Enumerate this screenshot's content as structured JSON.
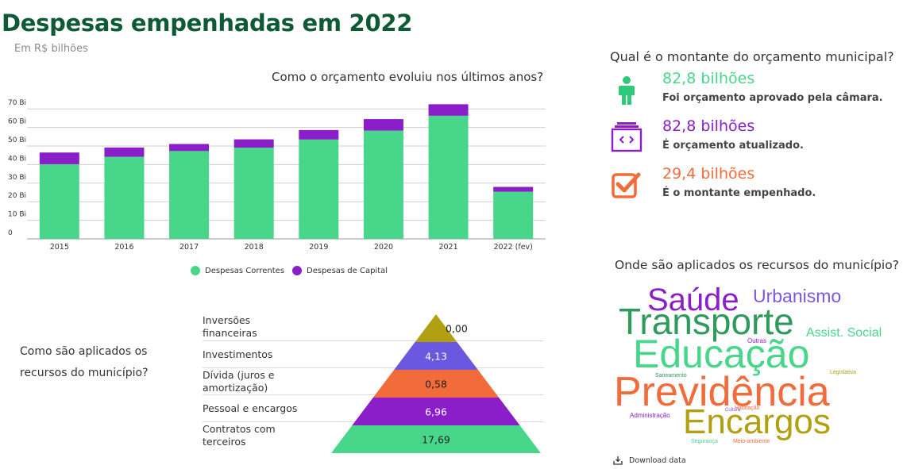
{
  "header": {
    "title": "Despesas empenhadas em 2022",
    "subtitle": "Em R$ bilhões"
  },
  "colors": {
    "title": "#0d5a34",
    "correntes": "#48d68b",
    "capital": "#8a1ec8",
    "pyramid": [
      "#b0a012",
      "#6b57e0",
      "#f26b3a",
      "#8a1ec8",
      "#48d68b"
    ]
  },
  "chart_data": [
    {
      "type": "bar",
      "stacked": true,
      "title": "Como o orçamento evoluiu nos últimos anos?",
      "categories": [
        "2015",
        "2016",
        "2017",
        "2018",
        "2019",
        "2020",
        "2021",
        "2022 (fev)"
      ],
      "series": [
        {
          "name": "Despesas Correntes",
          "values": [
            40.2,
            44.2,
            47.3,
            49.1,
            53.5,
            58.3,
            66.3,
            25.4
          ]
        },
        {
          "name": "Despesas de Capital",
          "values": [
            6.3,
            5.0,
            3.8,
            4.5,
            5.1,
            6.2,
            6.2,
            2.6
          ]
        }
      ],
      "ylim": [
        0,
        75
      ],
      "yticks": [
        0,
        10,
        20,
        30,
        40,
        50,
        60,
        70
      ],
      "yticklabels": [
        "0",
        "10 Bi",
        "20 Bi",
        "30 Bi",
        "40 Bi",
        "50 Bi",
        "60 Bi",
        "70 Bi"
      ],
      "grid": true,
      "legend": "bottom"
    },
    {
      "type": "pyramid",
      "title": "Como são aplicados os recursos do município?",
      "categories": [
        "Inversões financeiras",
        "Investimentos",
        "Dívida (juros e amortização)",
        "Pessoal e encargos",
        "Contratos com terceiros"
      ],
      "values": [
        0.0,
        4.13,
        0.58,
        6.96,
        17.69
      ],
      "value_labels": [
        "0,00",
        "4,13",
        "0,58",
        "6,96",
        "17,69"
      ]
    },
    {
      "type": "wordcloud",
      "title": "Onde são aplicados os recursos do município?",
      "words": [
        {
          "text": "Saúde",
          "color": "#8a1ec8"
        },
        {
          "text": "Urbanismo",
          "color": "#7b57e0"
        },
        {
          "text": "Transporte",
          "color": "#2e9a5c"
        },
        {
          "text": "Assist. Social",
          "color": "#48d68b"
        },
        {
          "text": "Outras",
          "color": "#8a1ec8"
        },
        {
          "text": "Educação",
          "color": "#48d68b"
        },
        {
          "text": "Saneamento",
          "color": "#2e9a5c"
        },
        {
          "text": "Legislativa",
          "color": "#b0a012"
        },
        {
          "text": "Previdência",
          "color": "#f26b3a"
        },
        {
          "text": "Habitação",
          "color": "#f26b3a"
        },
        {
          "text": "Cultura",
          "color": "#7b57e0"
        },
        {
          "text": "Administração",
          "color": "#8a1ec8"
        },
        {
          "text": "Encargos",
          "color": "#b0a012"
        },
        {
          "text": "Segurança",
          "color": "#48d68b"
        },
        {
          "text": "Meio-ambiente",
          "color": "#f26b3a"
        }
      ]
    }
  ],
  "pyramid_question": "Como são aplicados os recursos do município?",
  "budget": {
    "title": "Qual é o montante do orçamento municipal?",
    "items": [
      {
        "value": "82,8 bilhões",
        "desc": "Foi orçamento aprovado pela câmara.",
        "color": "#48d68b",
        "icon": "person-icon"
      },
      {
        "value": "82,8 bilhões",
        "desc": "É orçamento atualizado.",
        "color": "#8a1ec8",
        "icon": "code-window-icon"
      },
      {
        "value": "29,4 bilhões",
        "desc": "É o montante empenhado.",
        "color": "#f26b3a",
        "icon": "checkbox-icon"
      }
    ]
  },
  "download": {
    "label": "Download data",
    "icon": "download-icon"
  }
}
